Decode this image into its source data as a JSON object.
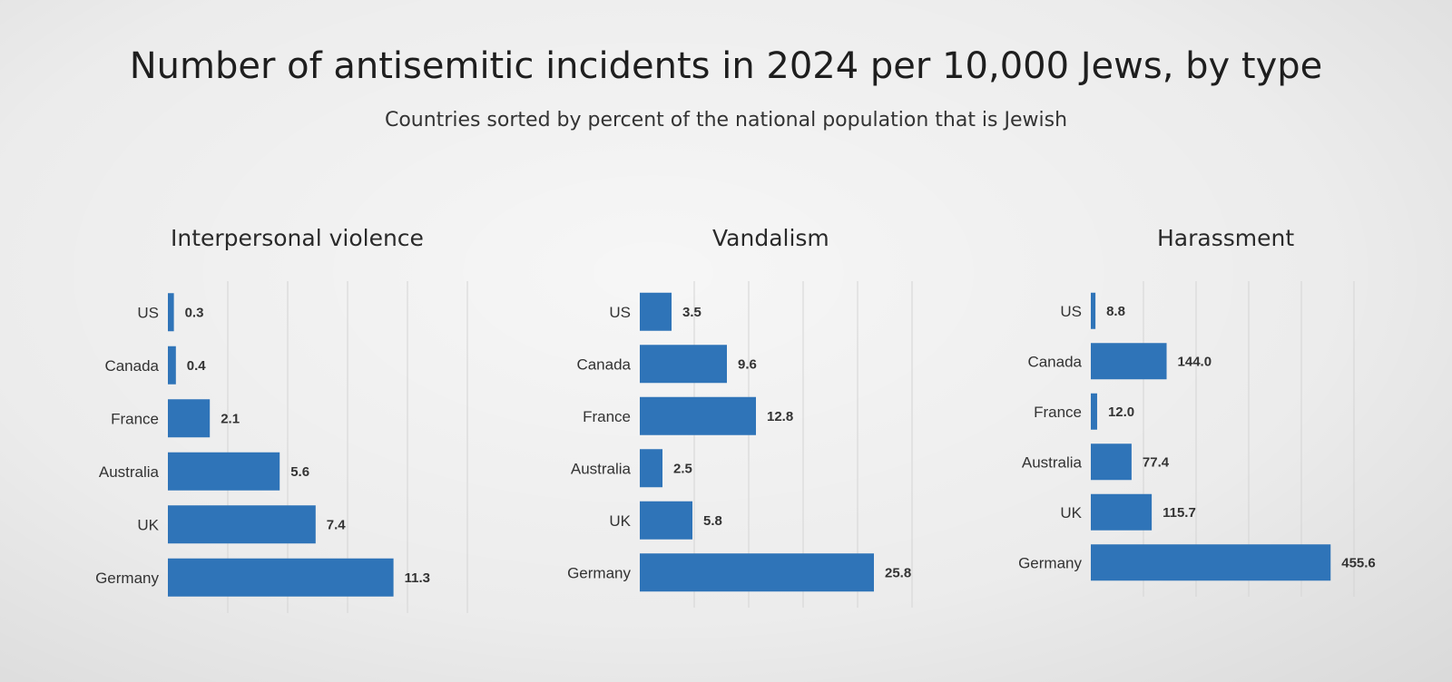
{
  "title": "Number of antisemitic incidents in 2024 per 10,000 Jews, by type",
  "subtitle": "Countries sorted by percent of the national population that is Jewish",
  "colors": {
    "bar": "#2f74b8",
    "grid": "#d4d4d4"
  },
  "chart_data": [
    {
      "type": "bar",
      "orientation": "horizontal",
      "title": "Interpersonal violence",
      "categories": [
        "US",
        "Canada",
        "France",
        "Australia",
        "UK",
        "Germany"
      ],
      "values": [
        0.3,
        0.4,
        2.1,
        5.6,
        7.4,
        11.3
      ],
      "value_labels": [
        "0.3",
        "0.4",
        "2.1",
        "5.6",
        "7.4",
        "11.3"
      ],
      "xlim": [
        0,
        15
      ],
      "grid": true
    },
    {
      "type": "bar",
      "orientation": "horizontal",
      "title": "Vandalism",
      "categories": [
        "US",
        "Canada",
        "France",
        "Australia",
        "UK",
        "Germany"
      ],
      "values": [
        3.5,
        9.6,
        12.8,
        2.5,
        5.8,
        25.8
      ],
      "value_labels": [
        "3.5",
        "9.6",
        "12.8",
        "2.5",
        "5.8",
        "25.8"
      ],
      "xlim": [
        0,
        30
      ],
      "grid": true
    },
    {
      "type": "bar",
      "orientation": "horizontal",
      "title": "Harassment",
      "categories": [
        "US",
        "Canada",
        "France",
        "Australia",
        "UK",
        "Germany"
      ],
      "values": [
        8.8,
        144.0,
        12.0,
        77.4,
        115.7,
        455.6
      ],
      "value_labels": [
        "8.8",
        "144.0",
        "12.0",
        "77.4",
        "115.7",
        "455.6"
      ],
      "xlim": [
        0,
        500
      ],
      "grid": true
    }
  ]
}
